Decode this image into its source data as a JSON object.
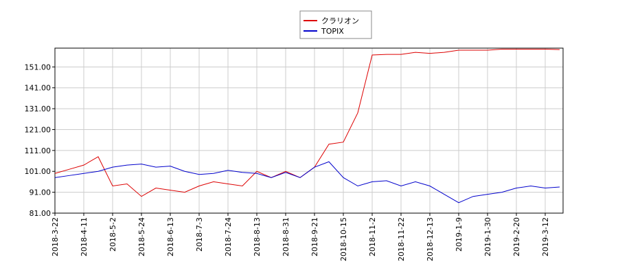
{
  "chart_data": {
    "type": "line",
    "categories": [
      "2018-3-22",
      null,
      "2018-4-11",
      null,
      "2018-5-2",
      null,
      "2018-5-24",
      null,
      "2018-6-13",
      null,
      "2018-7-3",
      null,
      "2018-7-24",
      null,
      "2018-8-13",
      null,
      "2018-8-31",
      null,
      "2018-9-21",
      null,
      "2018-10-15",
      null,
      "2018-11-2",
      null,
      "2018-11-22",
      null,
      "2018-12-13",
      null,
      "2019-1-9",
      null,
      "2019-1-30",
      null,
      "2019-2-20",
      null,
      "2019-3-12",
      null
    ],
    "series": [
      {
        "name": "クラリオン",
        "color": "#dd0000",
        "values": [
          100,
          102,
          104,
          108,
          94,
          95,
          89,
          93,
          92,
          91,
          94,
          96,
          95,
          94,
          101,
          98,
          101,
          98,
          103,
          114,
          115,
          129,
          156.7,
          157,
          157,
          158,
          157.5,
          158,
          159,
          159,
          159,
          159.5,
          159.5,
          159.5,
          159.5,
          159.3
        ]
      },
      {
        "name": "TOPIX",
        "color": "#0000cc",
        "values": [
          98,
          99,
          100,
          101,
          103,
          104,
          104.5,
          103,
          103.5,
          101,
          99.5,
          100,
          101.5,
          100.5,
          100,
          98,
          100.5,
          98,
          103,
          105.6,
          98,
          94,
          96,
          96.5,
          94,
          96,
          94,
          90,
          86,
          89,
          90,
          91,
          93,
          94,
          93,
          93.5
        ]
      }
    ],
    "ylim": [
      81,
      160
    ],
    "yticks": [
      {
        "value": 81,
        "label": "81.00"
      },
      {
        "value": 91,
        "label": "91.00"
      },
      {
        "value": 101,
        "label": "101.00"
      },
      {
        "value": 111,
        "label": "111.00"
      },
      {
        "value": 121,
        "label": "121.00"
      },
      {
        "value": 131,
        "label": "131.00"
      },
      {
        "value": 141,
        "label": "141.00"
      },
      {
        "value": 151,
        "label": "151.00"
      }
    ],
    "grid": true
  }
}
